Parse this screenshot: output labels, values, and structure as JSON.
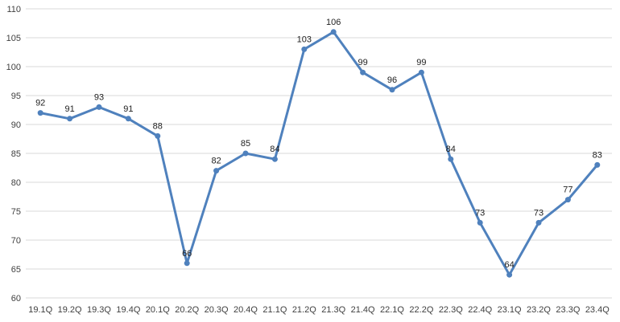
{
  "chart_data": {
    "type": "line",
    "categories": [
      "19.1Q",
      "19.2Q",
      "19.3Q",
      "19.4Q",
      "20.1Q",
      "20.2Q",
      "20.3Q",
      "20.4Q",
      "21.1Q",
      "21.2Q",
      "21.3Q",
      "21.4Q",
      "22.1Q",
      "22.2Q",
      "22.3Q",
      "22.4Q",
      "23.1Q",
      "23.2Q",
      "23.3Q",
      "23.4Q"
    ],
    "series": [
      {
        "values": [
          92,
          91,
          93,
          91,
          88,
          66,
          82,
          85,
          84,
          103,
          106,
          99,
          96,
          99,
          84,
          73,
          64,
          73,
          77,
          83
        ],
        "color": "#4f81bd"
      }
    ],
    "ylim": [
      60,
      110
    ],
    "yticks": [
      60,
      65,
      70,
      75,
      80,
      85,
      90,
      95,
      100,
      105,
      110
    ],
    "grid": true,
    "data_labels": true,
    "legend": "none"
  }
}
